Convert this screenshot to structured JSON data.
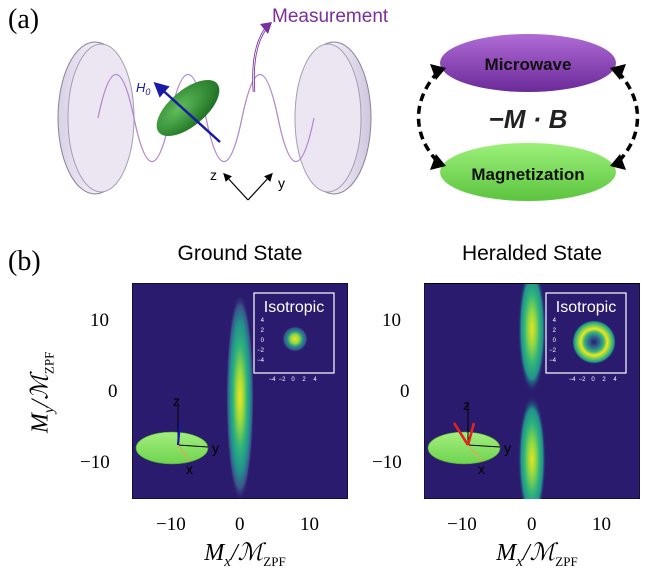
{
  "panel_a": {
    "label": "(a)",
    "measurement_label": "Measurement",
    "field_label_main": "H",
    "field_label_sub": "0",
    "axis_z": "z",
    "axis_y": "y",
    "microwave_label": "Microwave",
    "magnetization_label": "Magnetization",
    "coupling_label": "−M · B",
    "colors": {
      "purple": "#7a2f9e",
      "green": "#7ed957",
      "field_arrow": "#1a1aa6"
    }
  },
  "panel_b": {
    "label": "(b)",
    "plots": [
      {
        "title": "Ground State",
        "inset_label": "Isotropic",
        "inset_ticks": [
          "4",
          "2",
          "0",
          "−2",
          "−4"
        ],
        "inset_xticks": [
          "−4",
          "−2",
          "0",
          "2",
          "4"
        ],
        "yticks": [
          "10",
          "0",
          "−10"
        ],
        "xticks": [
          "−10",
          "0",
          "10"
        ],
        "axis_z": "z",
        "axis_y": "y",
        "axis_x": "x"
      },
      {
        "title": "Heralded State",
        "inset_label": "Isotropic",
        "inset_ticks": [
          "4",
          "2",
          "0",
          "−2",
          "−4"
        ],
        "inset_xticks": [
          "−4",
          "−2",
          "0",
          "2",
          "4"
        ],
        "yticks": [
          "10",
          "0",
          "−10"
        ],
        "xticks": [
          "−10",
          "0",
          "10"
        ],
        "axis_z": "z",
        "axis_y": "y",
        "axis_x": "x"
      }
    ],
    "ylabel_main": "M",
    "ylabel_sub": "y",
    "ylabel_den": "ℳ",
    "ylabel_den_sub": "ZPF",
    "xlabel_main": "M",
    "xlabel_sub": "x",
    "xlabel_den": "ℳ",
    "xlabel_den_sub": "ZPF",
    "colors": {
      "background": "#2a1b6e",
      "peak": "#f2e51d"
    }
  }
}
